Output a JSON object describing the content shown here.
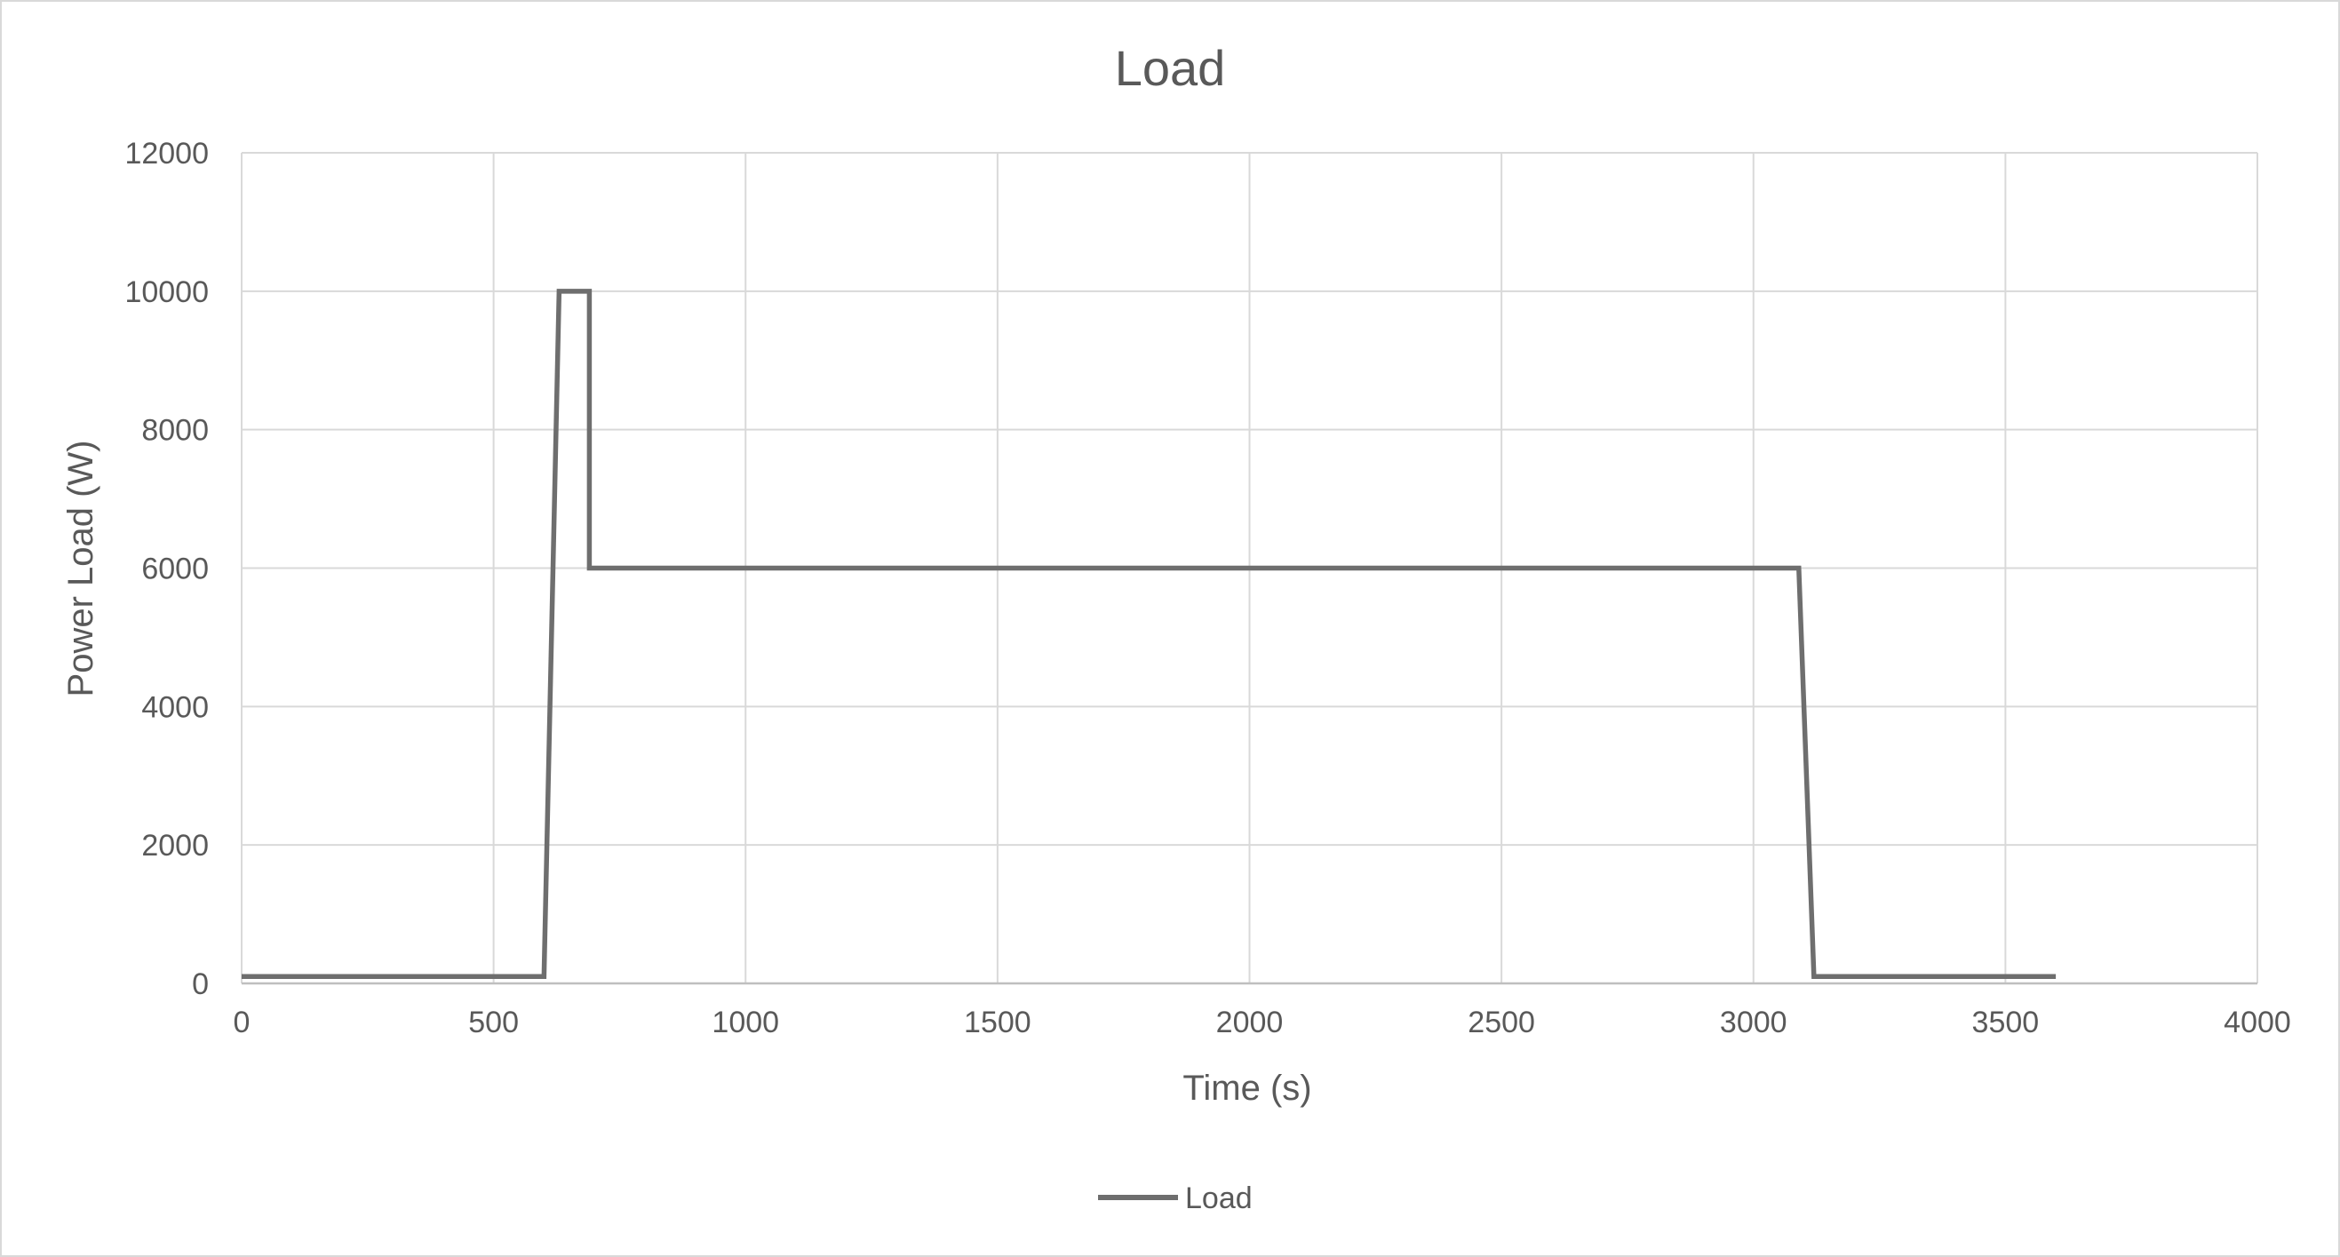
{
  "chart_data": {
    "type": "line",
    "title": "Load",
    "xlabel": "Time (s)",
    "ylabel": "Power Load (W)",
    "xlim": [
      0,
      4000
    ],
    "ylim": [
      0,
      12000
    ],
    "x_ticks": [
      "0",
      "500",
      "1000",
      "1500",
      "2000",
      "2500",
      "3000",
      "3500",
      "4000"
    ],
    "y_ticks": [
      "0",
      "2000",
      "4000",
      "6000",
      "8000",
      "10000",
      "12000"
    ],
    "grid": true,
    "legend": {
      "position": "bottom",
      "entries": [
        "Load"
      ]
    },
    "series": [
      {
        "name": "Load",
        "color": "#6e6e6e",
        "x": [
          0,
          600,
          630,
          690,
          690,
          3090,
          3120,
          3600
        ],
        "y": [
          100,
          100,
          10000,
          10000,
          6000,
          6000,
          100,
          100
        ]
      }
    ]
  }
}
